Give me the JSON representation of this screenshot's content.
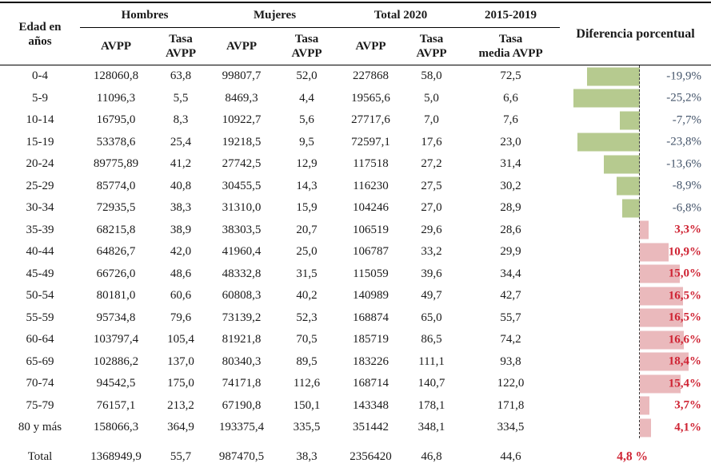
{
  "colors": {
    "bar_negative": "#b6ca8f",
    "bar_positive": "#eab9bc",
    "label_negative": "#44546a",
    "label_positive": "#cf2434"
  },
  "table": {
    "header": {
      "edad": "Edad en\naños",
      "groups": [
        "Hombres",
        "Mujeres",
        "Total 2020",
        "2015-2019"
      ],
      "subheaders": [
        "AVPP",
        "Tasa\nAVPP",
        "AVPP",
        "Tasa\nAVPP",
        "AVPP",
        "Tasa\nAVPP",
        "Tasa\nmedia AVPP"
      ],
      "diferencia": "Diferencia porcentual"
    },
    "rows": [
      {
        "edad": "0-4",
        "h_avpp": "128060,8",
        "h_tasa": "63,8",
        "m_avpp": "99807,7",
        "m_tasa": "52,0",
        "t_avpp": "227868",
        "t_tasa": "58,0",
        "media": "72,5",
        "dif_label": "-19,9%",
        "dif_value": -19.9
      },
      {
        "edad": "5-9",
        "h_avpp": "11096,3",
        "h_tasa": "5,5",
        "m_avpp": "8469,3",
        "m_tasa": "4,4",
        "t_avpp": "19565,6",
        "t_tasa": "5,0",
        "media": "6,6",
        "dif_label": "-25,2%",
        "dif_value": -25.2
      },
      {
        "edad": "10-14",
        "h_avpp": "16795,0",
        "h_tasa": "8,3",
        "m_avpp": "10922,7",
        "m_tasa": "5,6",
        "t_avpp": "27717,6",
        "t_tasa": "7,0",
        "media": "7,6",
        "dif_label": "-7,7%",
        "dif_value": -7.7
      },
      {
        "edad": "15-19",
        "h_avpp": "53378,6",
        "h_tasa": "25,4",
        "m_avpp": "19218,5",
        "m_tasa": "9,5",
        "t_avpp": "72597,1",
        "t_tasa": "17,6",
        "media": "23,0",
        "dif_label": "-23,8%",
        "dif_value": -23.8
      },
      {
        "edad": "20-24",
        "h_avpp": "89775,89",
        "h_tasa": "41,2",
        "m_avpp": "27742,5",
        "m_tasa": "12,9",
        "t_avpp": "117518",
        "t_tasa": "27,2",
        "media": "31,4",
        "dif_label": "-13,6%",
        "dif_value": -13.6
      },
      {
        "edad": "25-29",
        "h_avpp": "85774,0",
        "h_tasa": "40,8",
        "m_avpp": "30455,5",
        "m_tasa": "14,3",
        "t_avpp": "116230",
        "t_tasa": "27,5",
        "media": "30,2",
        "dif_label": "-8,9%",
        "dif_value": -8.9
      },
      {
        "edad": "30-34",
        "h_avpp": "72935,5",
        "h_tasa": "38,3",
        "m_avpp": "31310,0",
        "m_tasa": "15,9",
        "t_avpp": "104246",
        "t_tasa": "27,0",
        "media": "28,9",
        "dif_label": "-6,8%",
        "dif_value": -6.8
      },
      {
        "edad": "35-39",
        "h_avpp": "68215,8",
        "h_tasa": "38,9",
        "m_avpp": "38303,5",
        "m_tasa": "20,7",
        "t_avpp": "106519",
        "t_tasa": "29,6",
        "media": "28,6",
        "dif_label": "3,3%",
        "dif_value": 3.3
      },
      {
        "edad": "40-44",
        "h_avpp": "64826,7",
        "h_tasa": "42,0",
        "m_avpp": "41960,4",
        "m_tasa": "25,0",
        "t_avpp": "106787",
        "t_tasa": "33,2",
        "media": "29,9",
        "dif_label": "10,9%",
        "dif_value": 10.9
      },
      {
        "edad": "45-49",
        "h_avpp": "66726,0",
        "h_tasa": "48,6",
        "m_avpp": "48332,8",
        "m_tasa": "31,5",
        "t_avpp": "115059",
        "t_tasa": "39,6",
        "media": "34,4",
        "dif_label": "15,0%",
        "dif_value": 15.0
      },
      {
        "edad": "50-54",
        "h_avpp": "80181,0",
        "h_tasa": "60,6",
        "m_avpp": "60808,3",
        "m_tasa": "40,2",
        "t_avpp": "140989",
        "t_tasa": "49,7",
        "media": "42,7",
        "dif_label": "16,5%",
        "dif_value": 16.5
      },
      {
        "edad": "55-59",
        "h_avpp": "95734,8",
        "h_tasa": "79,6",
        "m_avpp": "73139,2",
        "m_tasa": "52,3",
        "t_avpp": "168874",
        "t_tasa": "65,0",
        "media": "55,7",
        "dif_label": "16,5%",
        "dif_value": 16.5
      },
      {
        "edad": "60-64",
        "h_avpp": "103797,4",
        "h_tasa": "105,4",
        "m_avpp": "81921,8",
        "m_tasa": "70,5",
        "t_avpp": "185719",
        "t_tasa": "86,5",
        "media": "74,2",
        "dif_label": "16,6%",
        "dif_value": 16.6
      },
      {
        "edad": "65-69",
        "h_avpp": "102886,2",
        "h_tasa": "137,0",
        "m_avpp": "80340,3",
        "m_tasa": "89,5",
        "t_avpp": "183226",
        "t_tasa": "111,1",
        "media": "93,8",
        "dif_label": "18,4%",
        "dif_value": 18.4
      },
      {
        "edad": "70-74",
        "h_avpp": "94542,5",
        "h_tasa": "175,0",
        "m_avpp": "74171,8",
        "m_tasa": "112,6",
        "t_avpp": "168714",
        "t_tasa": "140,7",
        "media": "122,0",
        "dif_label": "15,4%",
        "dif_value": 15.4
      },
      {
        "edad": "75-79",
        "h_avpp": "76157,1",
        "h_tasa": "213,2",
        "m_avpp": "67190,8",
        "m_tasa": "150,1",
        "t_avpp": "143348",
        "t_tasa": "178,1",
        "media": "171,8",
        "dif_label": "3,7%",
        "dif_value": 3.7
      },
      {
        "edad": "80 y más",
        "h_avpp": "158066,3",
        "h_tasa": "364,9",
        "m_avpp": "193375,4",
        "m_tasa": "335,5",
        "t_avpp": "351442",
        "t_tasa": "348,1",
        "media": "334,5",
        "dif_label": "4,1%",
        "dif_value": 4.1
      }
    ],
    "total_row": {
      "edad": "Total",
      "h_avpp": "1368949,9",
      "h_tasa": "55,7",
      "m_avpp": "987470,5",
      "m_tasa": "38,3",
      "t_avpp": "2356420",
      "t_tasa": "46,8",
      "media": "44,6",
      "dif_label": "4,8 %"
    }
  },
  "chart_data": {
    "type": "bar",
    "title": "Diferencia porcentual",
    "orientation": "horizontal",
    "categories": [
      "0-4",
      "5-9",
      "10-14",
      "15-19",
      "20-24",
      "25-29",
      "30-34",
      "35-39",
      "40-44",
      "45-49",
      "50-54",
      "55-59",
      "60-64",
      "65-69",
      "70-74",
      "75-79",
      "80 y más"
    ],
    "values": [
      -19.9,
      -25.2,
      -7.7,
      -23.8,
      -13.6,
      -8.9,
      -6.8,
      3.3,
      10.9,
      15.0,
      16.5,
      16.5,
      16.6,
      18.4,
      15.4,
      3.7,
      4.1
    ],
    "total_value": 4.8,
    "xlim": [
      -30,
      25
    ],
    "negative_color": "#b6ca8f",
    "positive_color": "#eab9bc",
    "baseline": "dashed vertical line at 0",
    "grid": false,
    "legend": false
  }
}
